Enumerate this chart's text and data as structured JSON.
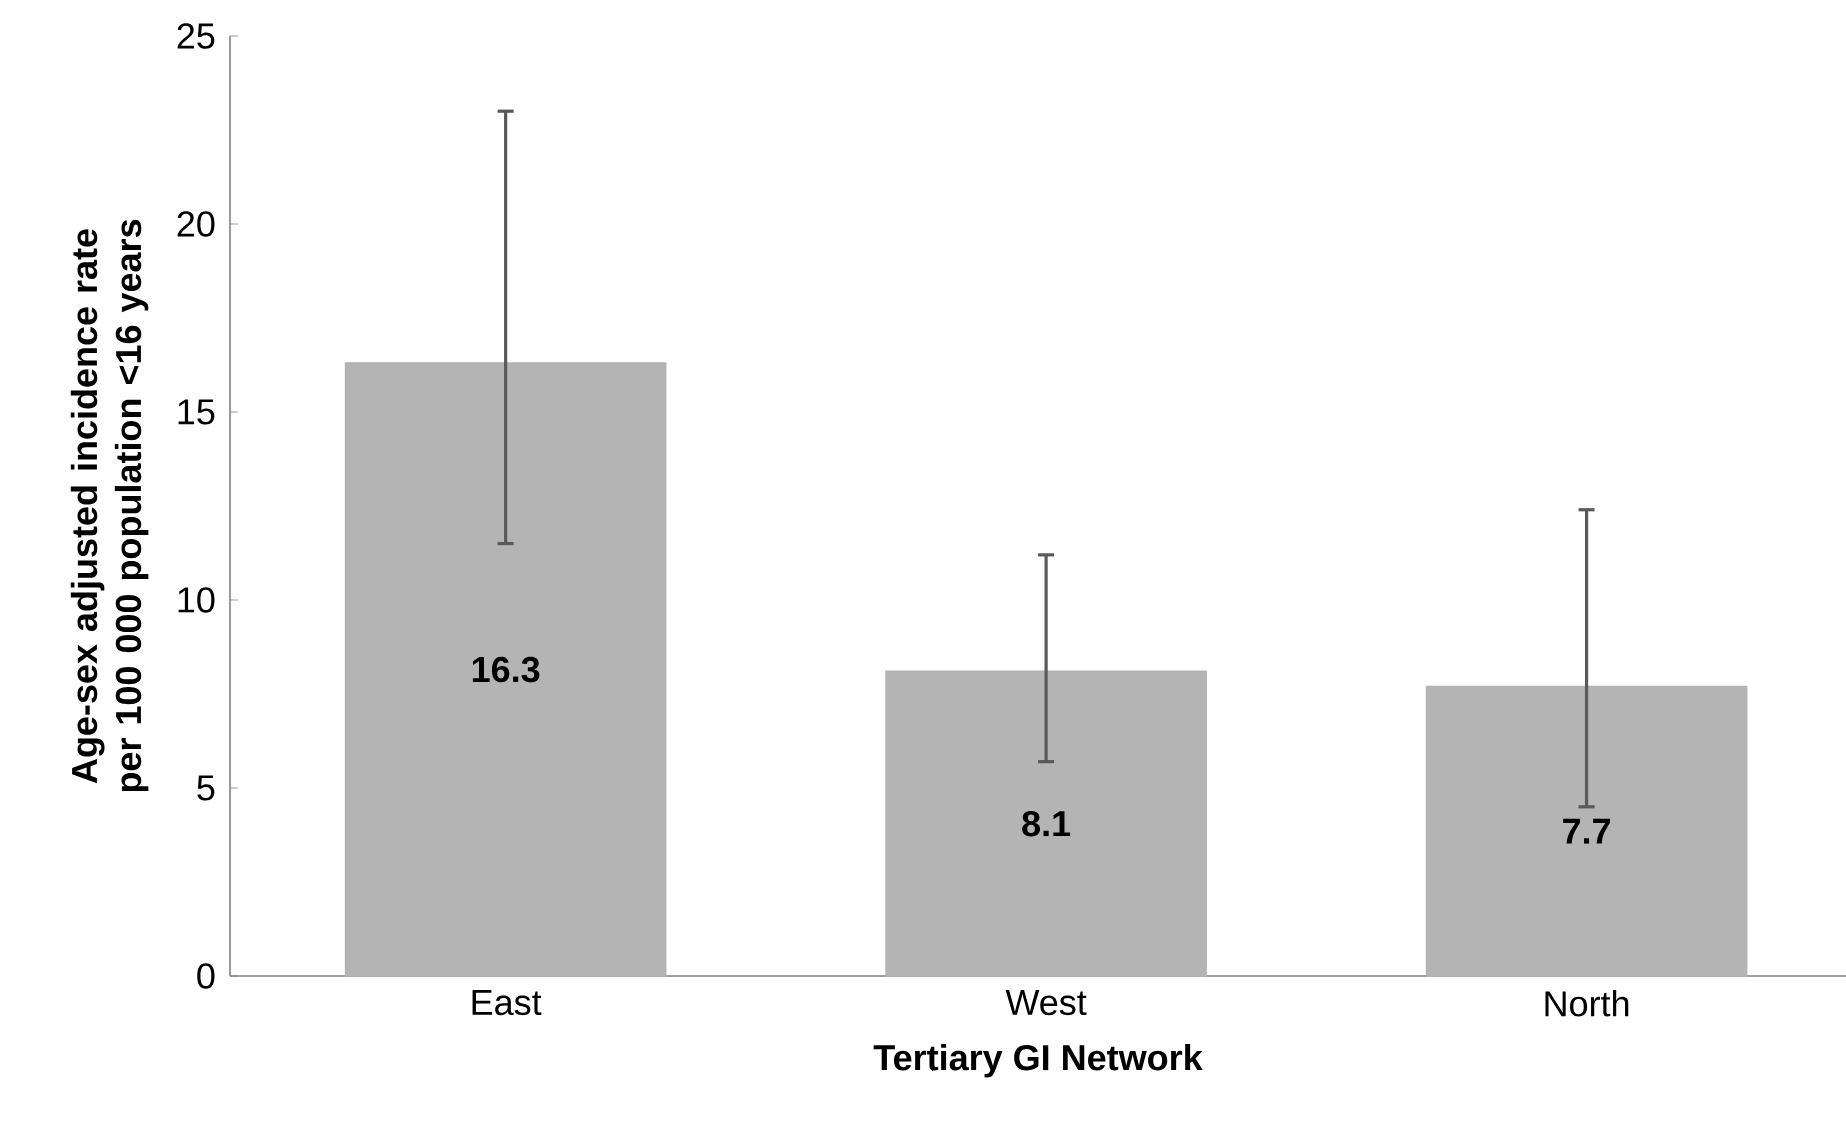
{
  "chart_data": {
    "type": "bar",
    "xlabel": "Tertiary GI Network",
    "ylabel": "Age-sex adjusted incidence rate per 100 000 population <16 years",
    "categories": [
      "East",
      "West",
      "North"
    ],
    "values": [
      16.3,
      8.1,
      7.7
    ],
    "color": "#b4b4b4",
    "errors": [
      [
        11.5,
        23
      ],
      [
        5.7,
        11.2
      ],
      [
        4.5,
        12.4
      ]
    ],
    "ylim": [
      0,
      25
    ],
    "yticks": [
      0,
      5,
      10,
      15,
      20,
      25
    ],
    "data_labels": true
  }
}
